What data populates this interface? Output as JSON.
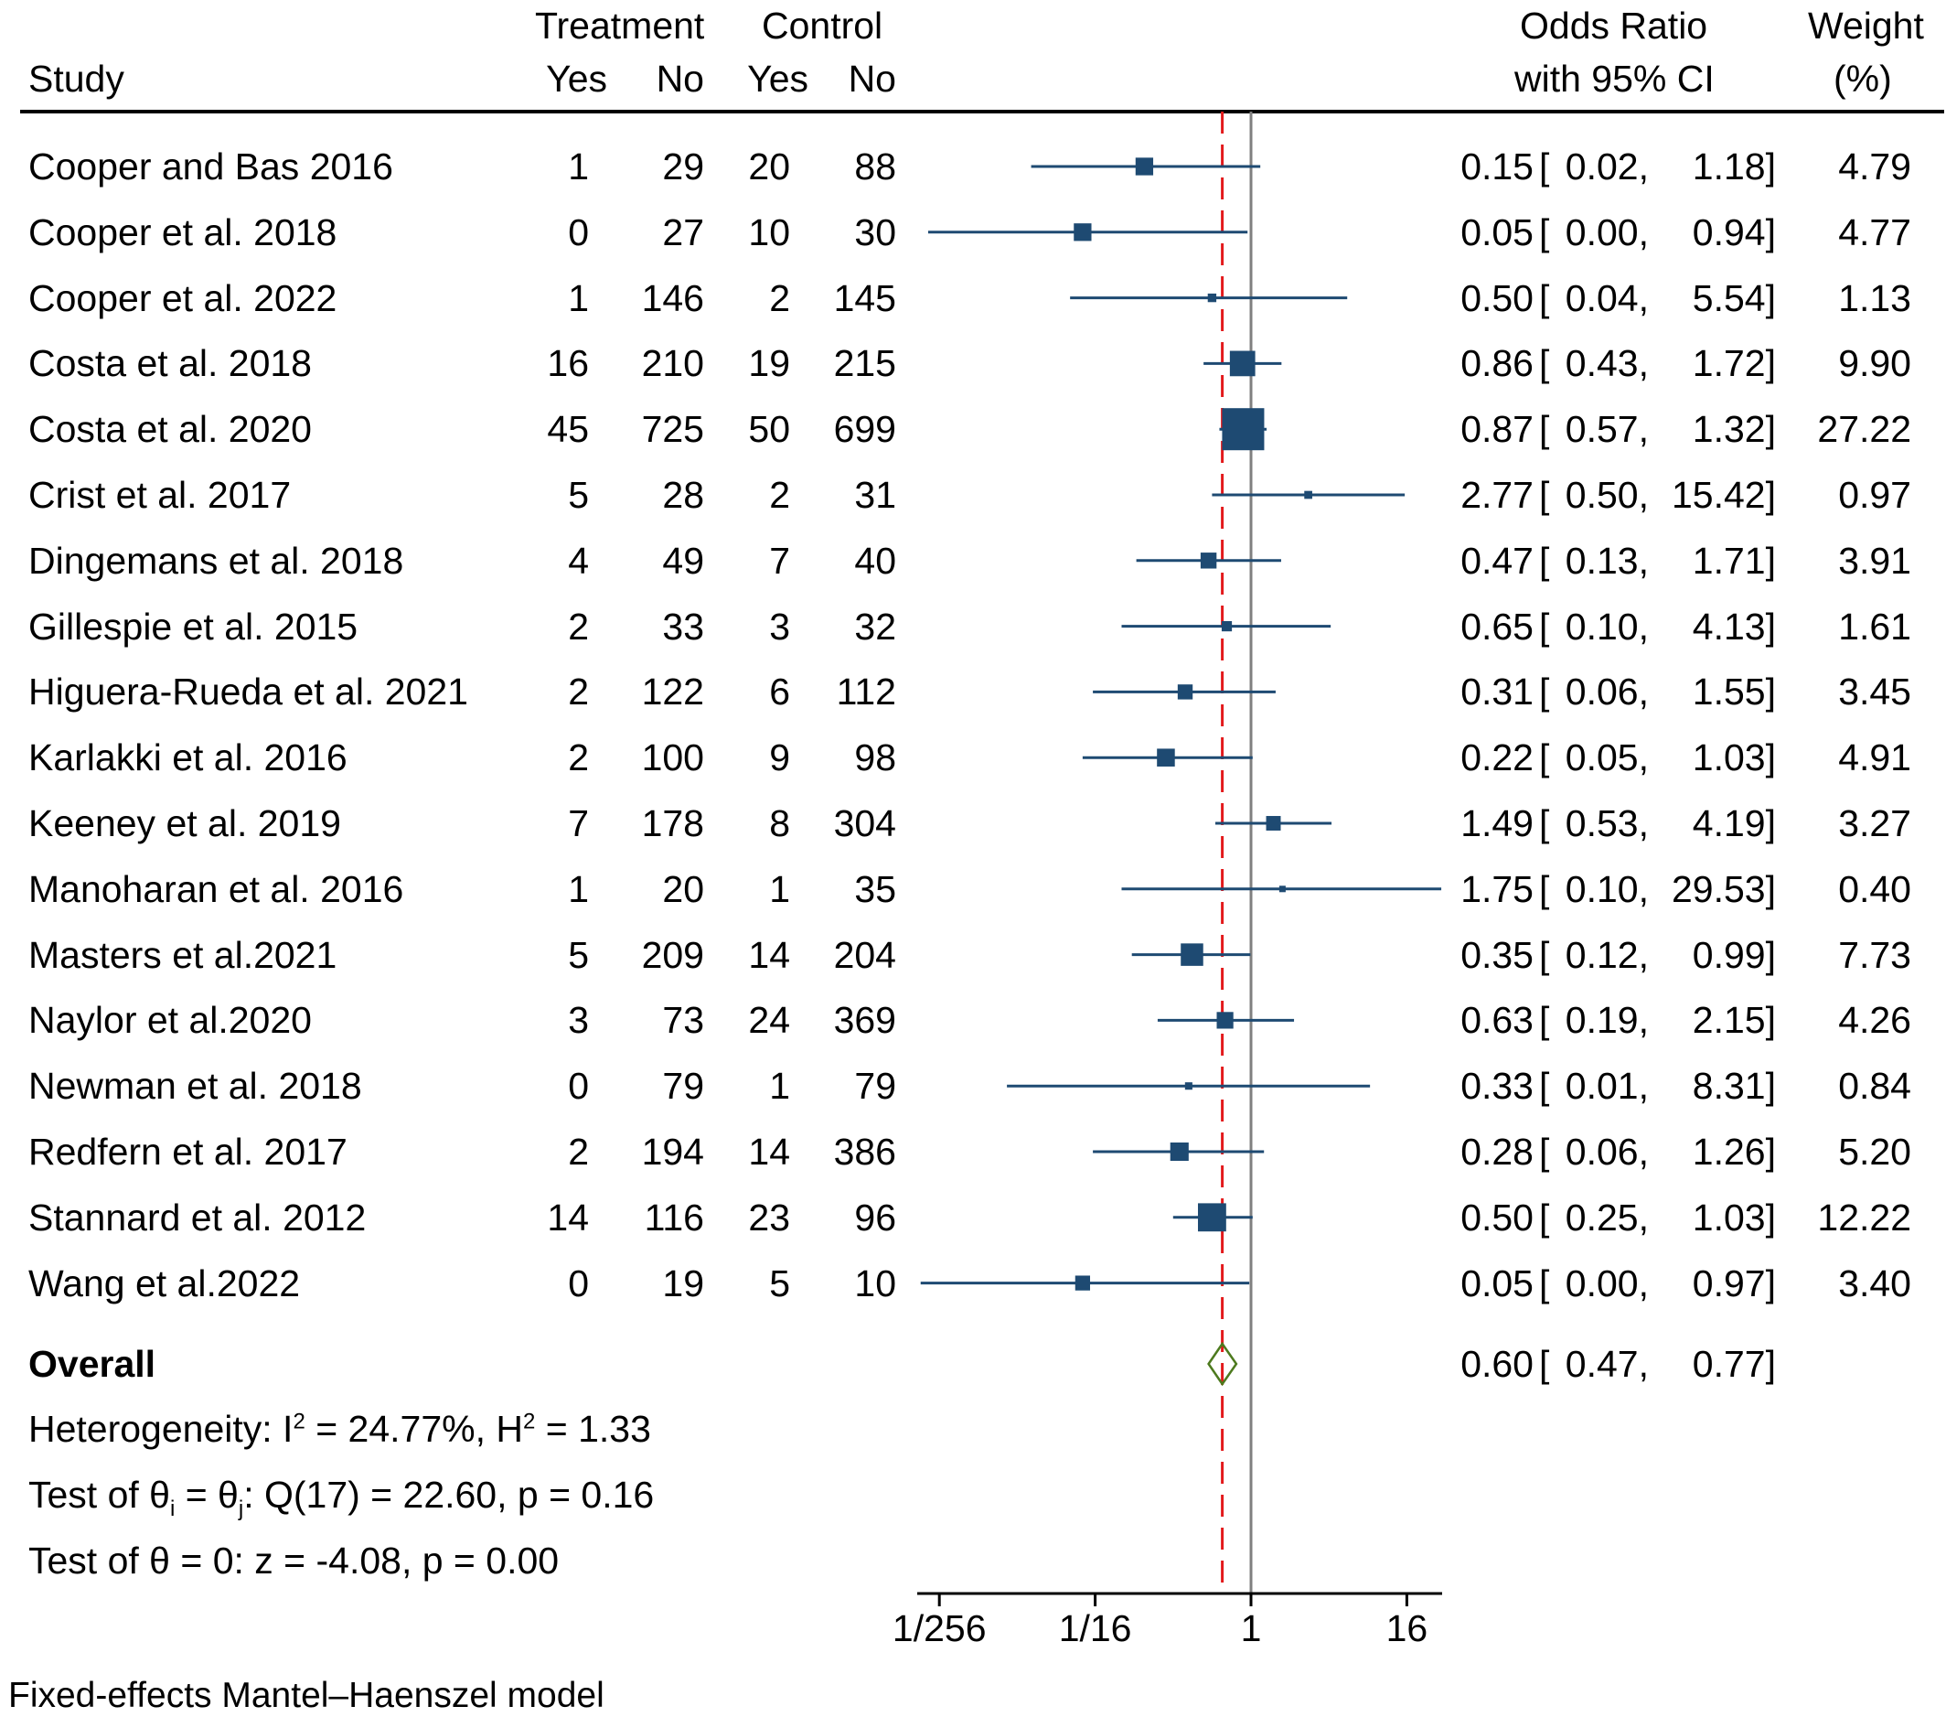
{
  "colors": {
    "marker": "#1e4a72",
    "ci_line": "#1e4a72",
    "null_line": "#808080",
    "overall_line": "#e31a1c",
    "diamond": "#4d7a1e",
    "axis": "#000000"
  },
  "header": {
    "study": "Study",
    "treatment": "Treatment",
    "control": "Control",
    "yes": "Yes",
    "no": "No",
    "or_line1": "Odds Ratio",
    "or_line2": "with 95% CI",
    "weight_line1": "Weight",
    "weight_line2": "(%)"
  },
  "chart_data": {
    "type": "forest",
    "xlabel": "",
    "x_scale": "log2",
    "xlim": [
      0.00245,
      26
    ],
    "xticks": [
      {
        "value": 0.00390625,
        "label": "1/256"
      },
      {
        "value": 0.0625,
        "label": "1/16"
      },
      {
        "value": 1,
        "label": "1"
      },
      {
        "value": 16,
        "label": "16"
      }
    ],
    "null_value": 1,
    "studies": [
      {
        "study": "Cooper and Bas 2016",
        "t_yes": "1",
        "t_no": "29",
        "c_yes": "20",
        "c_no": "88",
        "or": 0.15,
        "lo": 0.02,
        "hi": 1.18,
        "or_text": "0.15",
        "lo_text": "0.02,",
        "hi_text": "1.18]",
        "weight": 4.79,
        "weight_text": "4.79"
      },
      {
        "study": "Cooper et al. 2018",
        "t_yes": "0",
        "t_no": "27",
        "c_yes": "10",
        "c_no": "30",
        "or": 0.05,
        "lo": 0.0032,
        "hi": 0.94,
        "or_text": "0.05",
        "lo_text": "0.00,",
        "hi_text": "0.94]",
        "weight": 4.77,
        "weight_text": "4.77"
      },
      {
        "study": "Cooper et al. 2022",
        "t_yes": "1",
        "t_no": "146",
        "c_yes": "2",
        "c_no": "145",
        "or": 0.5,
        "lo": 0.04,
        "hi": 5.54,
        "or_text": "0.50",
        "lo_text": "0.04,",
        "hi_text": "5.54]",
        "weight": 1.13,
        "weight_text": "1.13"
      },
      {
        "study": "Costa et al. 2018",
        "t_yes": "16",
        "t_no": "210",
        "c_yes": "19",
        "c_no": "215",
        "or": 0.86,
        "lo": 0.43,
        "hi": 1.72,
        "or_text": "0.86",
        "lo_text": "0.43,",
        "hi_text": "1.72]",
        "weight": 9.9,
        "weight_text": "9.90"
      },
      {
        "study": "Costa et al. 2020",
        "t_yes": "45",
        "t_no": "725",
        "c_yes": "50",
        "c_no": "699",
        "or": 0.87,
        "lo": 0.57,
        "hi": 1.32,
        "or_text": "0.87",
        "lo_text": "0.57,",
        "hi_text": "1.32]",
        "weight": 27.22,
        "weight_text": "27.22"
      },
      {
        "study": "Crist et al. 2017",
        "t_yes": "5",
        "t_no": "28",
        "c_yes": "2",
        "c_no": "31",
        "or": 2.77,
        "lo": 0.5,
        "hi": 15.42,
        "or_text": "2.77",
        "lo_text": "0.50,",
        "hi_text": "15.42]",
        "weight": 0.97,
        "weight_text": "0.97"
      },
      {
        "study": "Dingemans et al. 2018",
        "t_yes": "4",
        "t_no": "49",
        "c_yes": "7",
        "c_no": "40",
        "or": 0.47,
        "lo": 0.13,
        "hi": 1.71,
        "or_text": "0.47",
        "lo_text": "0.13,",
        "hi_text": "1.71]",
        "weight": 3.91,
        "weight_text": "3.91"
      },
      {
        "study": "Gillespie et al. 2015",
        "t_yes": "2",
        "t_no": "33",
        "c_yes": "3",
        "c_no": "32",
        "or": 0.65,
        "lo": 0.1,
        "hi": 4.13,
        "or_text": "0.65",
        "lo_text": "0.10,",
        "hi_text": "4.13]",
        "weight": 1.61,
        "weight_text": "1.61"
      },
      {
        "study": "Higuera-Rueda et al. 2021",
        "t_yes": "2",
        "t_no": "122",
        "c_yes": "6",
        "c_no": "112",
        "or": 0.31,
        "lo": 0.06,
        "hi": 1.55,
        "or_text": "0.31",
        "lo_text": "0.06,",
        "hi_text": "1.55]",
        "weight": 3.45,
        "weight_text": "3.45"
      },
      {
        "study": "Karlakki et al. 2016",
        "t_yes": "2",
        "t_no": "100",
        "c_yes": "9",
        "c_no": "98",
        "or": 0.22,
        "lo": 0.05,
        "hi": 1.03,
        "or_text": "0.22",
        "lo_text": "0.05,",
        "hi_text": "1.03]",
        "weight": 4.91,
        "weight_text": "4.91"
      },
      {
        "study": "Keeney et al. 2019",
        "t_yes": "7",
        "t_no": "178",
        "c_yes": "8",
        "c_no": "304",
        "or": 1.49,
        "lo": 0.53,
        "hi": 4.19,
        "or_text": "1.49",
        "lo_text": "0.53,",
        "hi_text": "4.19]",
        "weight": 3.27,
        "weight_text": "3.27"
      },
      {
        "study": "Manoharan et al. 2016",
        "t_yes": "1",
        "t_no": "20",
        "c_yes": "1",
        "c_no": "35",
        "or": 1.75,
        "lo": 0.1,
        "hi": 29.53,
        "or_text": "1.75",
        "lo_text": "0.10,",
        "hi_text": "29.53]",
        "weight": 0.4,
        "weight_text": "0.40"
      },
      {
        "study": "Masters et al.2021",
        "t_yes": "5",
        "t_no": "209",
        "c_yes": "14",
        "c_no": "204",
        "or": 0.35,
        "lo": 0.12,
        "hi": 0.99,
        "or_text": "0.35",
        "lo_text": "0.12,",
        "hi_text": "0.99]",
        "weight": 7.73,
        "weight_text": "7.73"
      },
      {
        "study": "Naylor et al.2020",
        "t_yes": "3",
        "t_no": "73",
        "c_yes": "24",
        "c_no": "369",
        "or": 0.63,
        "lo": 0.19,
        "hi": 2.15,
        "or_text": "0.63",
        "lo_text": "0.19,",
        "hi_text": "2.15]",
        "weight": 4.26,
        "weight_text": "4.26"
      },
      {
        "study": "Newman et al. 2018",
        "t_yes": "0",
        "t_no": "79",
        "c_yes": "1",
        "c_no": "79",
        "or": 0.33,
        "lo": 0.013,
        "hi": 8.31,
        "or_text": "0.33",
        "lo_text": "0.01,",
        "hi_text": "8.31]",
        "weight": 0.84,
        "weight_text": "0.84"
      },
      {
        "study": "Redfern et al. 2017",
        "t_yes": "2",
        "t_no": "194",
        "c_yes": "14",
        "c_no": "386",
        "or": 0.28,
        "lo": 0.06,
        "hi": 1.26,
        "or_text": "0.28",
        "lo_text": "0.06,",
        "hi_text": "1.26]",
        "weight": 5.2,
        "weight_text": "5.20"
      },
      {
        "study": "Stannard et al. 2012",
        "t_yes": "14",
        "t_no": "116",
        "c_yes": "23",
        "c_no": "96",
        "or": 0.5,
        "lo": 0.25,
        "hi": 1.03,
        "or_text": "0.50",
        "lo_text": "0.25,",
        "hi_text": "1.03]",
        "weight": 12.22,
        "weight_text": "12.22"
      },
      {
        "study": "Wang et al.2022",
        "t_yes": "0",
        "t_no": "19",
        "c_yes": "5",
        "c_no": "10",
        "or": 0.05,
        "lo": 0.0028,
        "hi": 0.97,
        "or_text": "0.05",
        "lo_text": "0.00,",
        "hi_text": "0.97]",
        "weight": 3.4,
        "weight_text": "3.40"
      }
    ],
    "overall": {
      "label": "Overall",
      "or": 0.6,
      "lo": 0.47,
      "hi": 0.77,
      "or_text": "0.60",
      "lo_text": "0.47,",
      "hi_text": "0.77]"
    },
    "stats": {
      "heterogeneity_a": "Heterogeneity: I",
      "heterogeneity_sup1": "2",
      "heterogeneity_b": " = 24.77%, H",
      "heterogeneity_sup2": "2",
      "heterogeneity_c": " = 1.33",
      "test_q_a": "Test of θ",
      "test_q_sub1": "i",
      "test_q_b": " = θ",
      "test_q_sub2": "j",
      "test_q_c": ": Q(17) = 22.60, p = 0.16",
      "test_z": "Test of θ = 0: z = -4.08, p = 0.00"
    },
    "footnote": "Fixed-effects Mantel–Haenszel model"
  }
}
